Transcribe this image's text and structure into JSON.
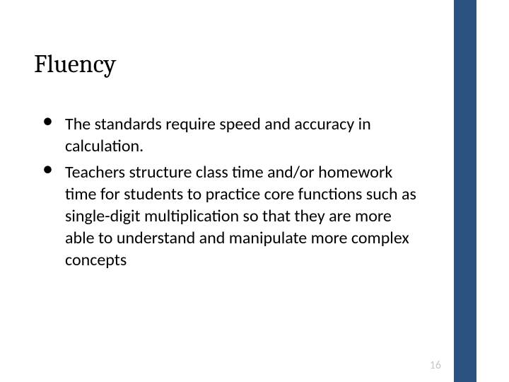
{
  "slide": {
    "title": "Fluency",
    "title_fontsize": 36,
    "title_color": "#000000",
    "bullets": [
      "The standards require speed and accuracy in calculation.",
      "Teachers structure class time and/or homework time for students to practice core functions such as single-digit multiplication so that they are more able to understand and manipulate more complex concepts"
    ],
    "body_fontsize": 24,
    "body_lineheight": 31,
    "body_color": "#000000",
    "sidebar_color": "#2a5180",
    "page_number": "16",
    "page_number_color": "#c8c8c8",
    "page_number_fontsize": 16,
    "background_color": "#ffffff"
  }
}
